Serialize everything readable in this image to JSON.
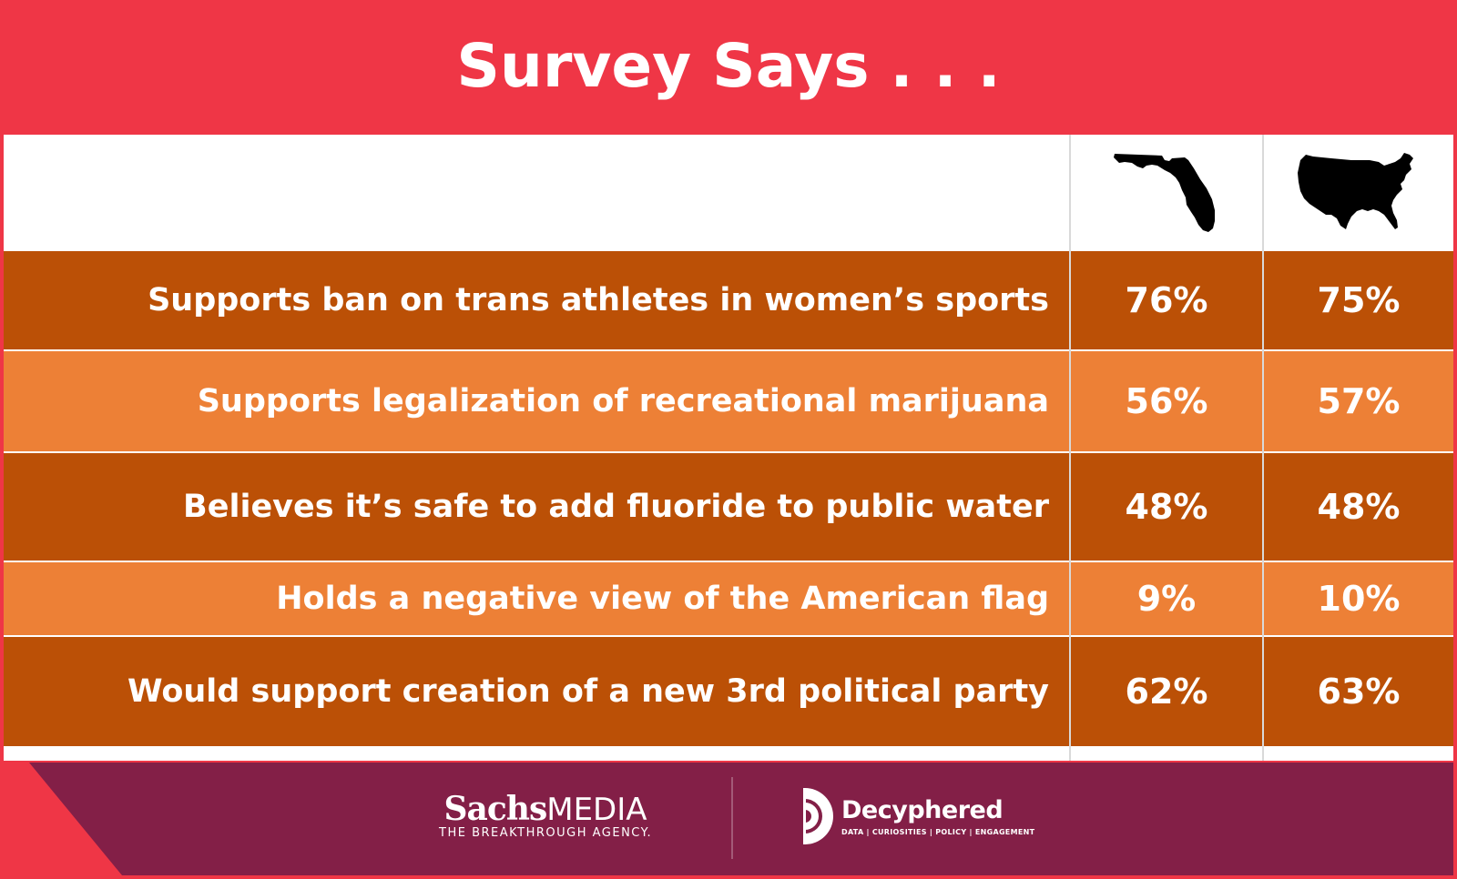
{
  "header": {
    "title": "Survey Says . . ."
  },
  "columns": {
    "florida_icon": "florida-map-icon",
    "usa_icon": "usa-map-icon"
  },
  "chart_data": {
    "type": "table",
    "title": "Survey Says . . .",
    "columns": [
      "",
      "",
      ""
    ],
    "rows": [
      {
        "label": "Supports ban on trans athletes in women’s sports",
        "florida": "76%",
        "usa": "75%",
        "florida_value": 76,
        "usa_value": 75
      },
      {
        "label": "Supports legalization of recreational marijuana",
        "florida": "56%",
        "usa": "57%",
        "florida_value": 56,
        "usa_value": 57
      },
      {
        "label": "Believes it’s safe to add fluoride to public water",
        "florida": "48%",
        "usa": "48%",
        "florida_value": 48,
        "usa_value": 48
      },
      {
        "label": "Holds a negative view of the American flag",
        "florida": "9%",
        "usa": "10%",
        "florida_value": 9,
        "usa_value": 10
      },
      {
        "label": "Would support creation of a new 3rd political party",
        "florida": "62%",
        "usa": "63%",
        "florida_value": 62,
        "usa_value": 63
      }
    ]
  },
  "footer": {
    "sachs_name": "Sachs",
    "sachs_media": "MEDIA",
    "sachs_tagline": "THE BREAKTHROUGH AGENCY.",
    "decyphered_name": "Decyphered",
    "decyphered_tagline": "DATA | CURIOSITIES | POLICY | ENGAGEMENT"
  },
  "colors": {
    "header_red": "#ef3646",
    "row_dark": "#bb5006",
    "row_light": "#ed8036",
    "footer_purple": "#831f47"
  }
}
